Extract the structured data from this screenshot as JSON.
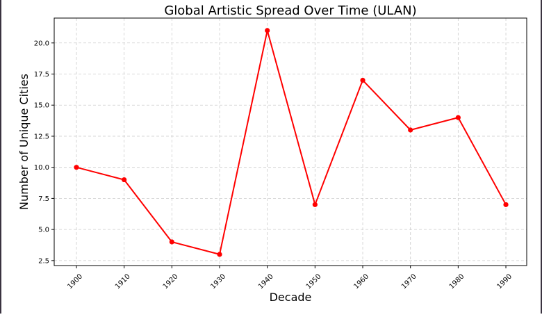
{
  "chart_data": {
    "type": "line",
    "title": "Global Artistic Spread Over Time (ULAN)",
    "xlabel": "Decade",
    "ylabel": "Number of Unique Cities",
    "categories": [
      "1900",
      "1910",
      "1920",
      "1930",
      "1940",
      "1950",
      "1960",
      "1970",
      "1980",
      "1990"
    ],
    "values": [
      10,
      9,
      4,
      3,
      21,
      7,
      17,
      13,
      14,
      7
    ],
    "yticks": [
      "2.5",
      "5.0",
      "7.5",
      "10.0",
      "12.5",
      "15.0",
      "17.5",
      "20.0"
    ],
    "ylim": [
      2.1,
      22.0
    ],
    "grid": true,
    "line_color": "#ff0000",
    "marker": "circle"
  }
}
